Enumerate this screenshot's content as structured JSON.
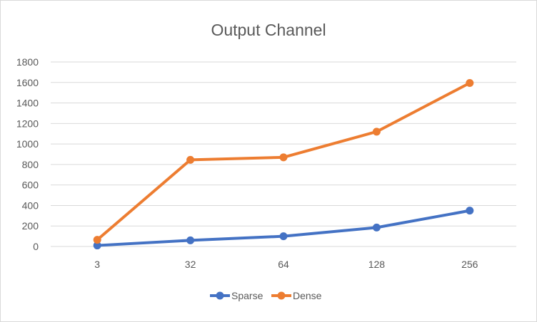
{
  "chart_data": {
    "type": "line",
    "title": "Output Channel",
    "xlabel": "",
    "ylabel": "",
    "categories": [
      "3",
      "32",
      "64",
      "128",
      "256"
    ],
    "ylim": [
      0,
      1800
    ],
    "yticks": [
      0,
      200,
      400,
      600,
      800,
      1000,
      1200,
      1400,
      1600,
      1800
    ],
    "grid": true,
    "legend_position": "bottom",
    "series": [
      {
        "name": "Sparse",
        "color": "#4472c4",
        "values": [
          10,
          60,
          100,
          185,
          350
        ]
      },
      {
        "name": "Dense",
        "color": "#ed7d31",
        "values": [
          65,
          845,
          870,
          1120,
          1595
        ]
      }
    ]
  }
}
